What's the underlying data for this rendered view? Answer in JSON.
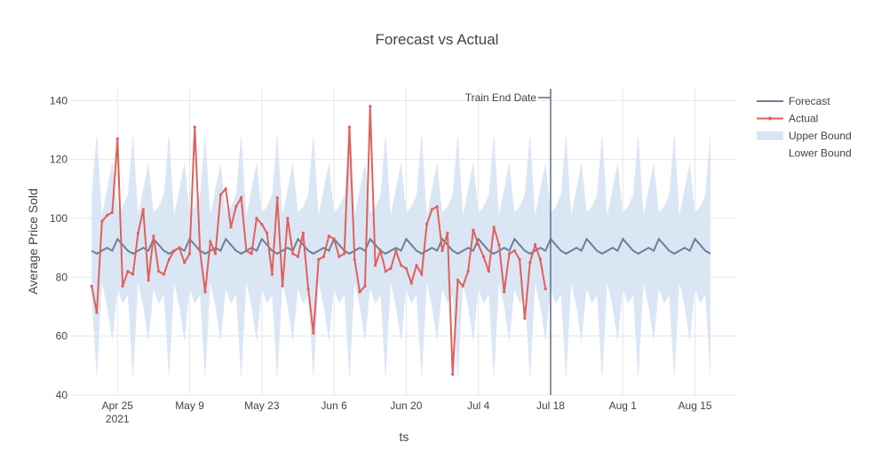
{
  "chart_data": {
    "type": "line",
    "title": "Forecast vs Actual",
    "xlabel": "ts",
    "ylabel": "Average Price Sold",
    "x_start": "2021-04-20",
    "x_end": "2021-08-18",
    "xlim": [
      "2021-04-16",
      "2021-08-23"
    ],
    "ylim": [
      40,
      144
    ],
    "grid": true,
    "legend_position": "top-right",
    "x_ticks": [
      {
        "date": "2021-04-25",
        "label": "Apr 25",
        "sub": "2021"
      },
      {
        "date": "2021-05-09",
        "label": "May 9"
      },
      {
        "date": "2021-05-23",
        "label": "May 23"
      },
      {
        "date": "2021-06-06",
        "label": "Jun 6"
      },
      {
        "date": "2021-06-20",
        "label": "Jun 20"
      },
      {
        "date": "2021-07-04",
        "label": "Jul 4"
      },
      {
        "date": "2021-07-18",
        "label": "Jul 18"
      },
      {
        "date": "2021-08-01",
        "label": "Aug 1"
      },
      {
        "date": "2021-08-15",
        "label": "Aug 15"
      }
    ],
    "y_ticks": [
      40,
      60,
      80,
      100,
      120,
      140
    ],
    "series": [
      {
        "name": "Forecast",
        "color": "#6b7f99"
      },
      {
        "name": "Actual",
        "color": "#e0605a"
      },
      {
        "name": "Upper Bound",
        "color": "#dbe6f5"
      },
      {
        "name": "Lower Bound",
        "color": "none"
      }
    ],
    "forecast_weekly_pattern": [
      89,
      88,
      89,
      90,
      89,
      93,
      91
    ],
    "upper_weekly_pattern": [
      108,
      129,
      101,
      110,
      119,
      102,
      104
    ],
    "lower_weekly_pattern": [
      74,
      45,
      78,
      70,
      58,
      76,
      71
    ],
    "actual": [
      77,
      68,
      99,
      101,
      102,
      127,
      77,
      82,
      81,
      95,
      103,
      79,
      94,
      82,
      81,
      86,
      89,
      90,
      85,
      88,
      131,
      89,
      75,
      92,
      88,
      108,
      110,
      97,
      104,
      107,
      89,
      88,
      100,
      98,
      95,
      81,
      107,
      77,
      100,
      88,
      87,
      95,
      76,
      61,
      86,
      87,
      94,
      93,
      87,
      88,
      131,
      86,
      75,
      77,
      138,
      84,
      89,
      82,
      83,
      89,
      84,
      83,
      78,
      84,
      81,
      98,
      103,
      104,
      89,
      95,
      47,
      79,
      77,
      82,
      96,
      91,
      87,
      82,
      97,
      91,
      75,
      88,
      89,
      86,
      66,
      85,
      91,
      86,
      76
    ],
    "annotations": [
      {
        "text": "Train End Date",
        "x": "2021-07-18",
        "y": 141
      }
    ]
  }
}
